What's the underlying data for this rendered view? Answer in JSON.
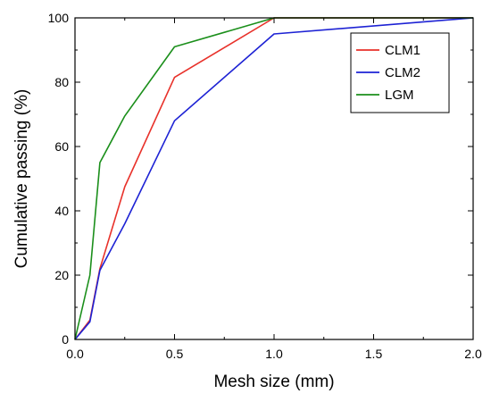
{
  "chart_data": {
    "type": "line",
    "title": "",
    "xlabel": "Mesh size (mm)",
    "ylabel": "Cumulative passing (%)",
    "xlim": [
      0.0,
      2.0
    ],
    "ylim": [
      0,
      100
    ],
    "x_ticks": [
      "0.0",
      "0.5",
      "1.0",
      "1.5",
      "2.0"
    ],
    "y_ticks": [
      "0",
      "20",
      "40",
      "60",
      "80",
      "100"
    ],
    "grid": false,
    "legend_position": "top-right",
    "series": [
      {
        "name": "CLM1",
        "color": "#e8312a",
        "x": [
          0,
          0.075,
          0.125,
          0.25,
          0.5,
          1.0,
          2.0
        ],
        "y": [
          0,
          6,
          22,
          47.5,
          81.5,
          100,
          100
        ]
      },
      {
        "name": "CLM2",
        "color": "#1d22d4",
        "x": [
          0,
          0.075,
          0.125,
          0.25,
          0.5,
          1.0,
          2.0
        ],
        "y": [
          0,
          5.5,
          21.5,
          36,
          68,
          95,
          100
        ]
      },
      {
        "name": "LGM",
        "color": "#1b8f1b",
        "x": [
          0,
          0.075,
          0.125,
          0.25,
          0.5,
          1.0,
          2.0
        ],
        "y": [
          0,
          20,
          55,
          69.5,
          91,
          100,
          100
        ]
      }
    ]
  }
}
